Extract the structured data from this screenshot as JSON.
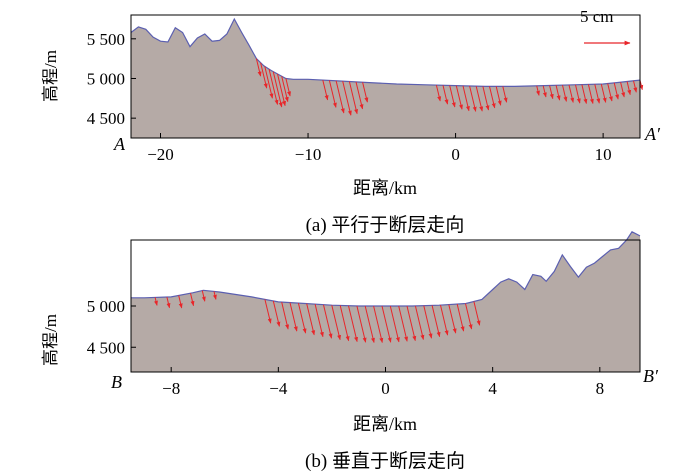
{
  "scale": {
    "text": "5 cm",
    "arrow_length_cm": 5
  },
  "colors": {
    "terrain_fill": "#b5aaa6",
    "surface_line": "#5b5fb0",
    "vector": "#e8262a"
  },
  "chart_data": [
    {
      "type": "area",
      "panel": "a",
      "caption": "(a) 平行于断层走向",
      "xlabel": "距离/km",
      "ylabel": "高程/m",
      "xlim": [
        -22,
        12.5
      ],
      "ylim": [
        4250,
        5800
      ],
      "xticks": [
        -20,
        -10,
        0,
        10
      ],
      "xtick_labels": [
        "−20",
        "−10",
        "0",
        "10"
      ],
      "yticks": [
        4500,
        5000,
        5500
      ],
      "ytick_labels": [
        "4 500",
        "5 000",
        "5 500"
      ],
      "start_label": "A",
      "end_label": "A′",
      "profile": {
        "x": [
          -22,
          -21.5,
          -21,
          -20.5,
          -20,
          -19.5,
          -19,
          -18.5,
          -18,
          -17.5,
          -17,
          -16.5,
          -16,
          -15.5,
          -15,
          -14.5,
          -14,
          -13.5,
          -13,
          -12.5,
          -12,
          -11.5,
          -11,
          -10.5,
          -10,
          -8,
          -6,
          -4,
          -2,
          0,
          2,
          4,
          6,
          8,
          10,
          11,
          12,
          12.5
        ],
        "y": [
          5580,
          5650,
          5620,
          5520,
          5470,
          5460,
          5640,
          5580,
          5400,
          5510,
          5560,
          5470,
          5480,
          5560,
          5750,
          5580,
          5420,
          5250,
          5160,
          5100,
          5050,
          5000,
          4990,
          4990,
          4990,
          4970,
          4950,
          4930,
          4920,
          4910,
          4900,
          4900,
          4910,
          4920,
          4930,
          4950,
          4970,
          4980
        ]
      },
      "vector_groups": [
        {
          "x_start": -13.5,
          "x_end": -11.5,
          "count": 8,
          "length_cm": [
            2.2,
            4.5
          ],
          "dir": "down-right"
        },
        {
          "x_start": -9.0,
          "x_end": -6.3,
          "count": 7,
          "length_cm": [
            2.5,
            4.3
          ],
          "dir": "down-right"
        },
        {
          "x_start": -1.3,
          "x_end": 3.2,
          "count": 11,
          "length_cm": [
            2.0,
            3.2
          ],
          "dir": "down-right"
        },
        {
          "x_start": 5.5,
          "x_end": 12.5,
          "count": 17,
          "length_cm": [
            1.2,
            2.4
          ],
          "dir": "down-right"
        }
      ]
    },
    {
      "type": "area",
      "panel": "b",
      "caption": "(b) 垂直于断层走向",
      "xlabel": "距离/km",
      "ylabel": "高程/m",
      "xlim": [
        -9.5,
        9.5
      ],
      "ylim": [
        4200,
        5800
      ],
      "xticks": [
        -8,
        -4,
        0,
        4,
        8
      ],
      "xtick_labels": [
        "−8",
        "−4",
        "0",
        "4",
        "8"
      ],
      "yticks": [
        4500,
        5000
      ],
      "ytick_labels": [
        "4 500",
        "5 000"
      ],
      "start_label": "B",
      "end_label": "B′",
      "profile": {
        "x": [
          -9.5,
          -9,
          -8,
          -7.2,
          -6.8,
          -6.2,
          -5,
          -4,
          -3,
          -2,
          -1,
          0,
          1,
          2,
          3,
          3.6,
          4,
          4.3,
          4.6,
          4.9,
          5.2,
          5.5,
          5.8,
          6.0,
          6.3,
          6.6,
          6.9,
          7.2,
          7.5,
          7.8,
          8.1,
          8.4,
          8.7,
          9.0,
          9.2,
          9.5
        ],
        "y": [
          5100,
          5100,
          5110,
          5160,
          5190,
          5170,
          5110,
          5050,
          5030,
          5010,
          5000,
          5000,
          5000,
          5010,
          5030,
          5080,
          5200,
          5290,
          5330,
          5290,
          5200,
          5380,
          5360,
          5300,
          5420,
          5620,
          5480,
          5350,
          5470,
          5520,
          5600,
          5680,
          5700,
          5800,
          5900,
          5850
        ]
      },
      "vector_groups": [
        {
          "x_start": -8.6,
          "x_end": -6.4,
          "count": 6,
          "length_cm": [
            1.0,
            1.6
          ],
          "dir": "down-right"
        },
        {
          "x_start": -4.5,
          "x_end": 3.3,
          "count": 26,
          "length_cm": [
            3.0,
            4.6
          ],
          "dir": "down-right"
        }
      ]
    }
  ]
}
